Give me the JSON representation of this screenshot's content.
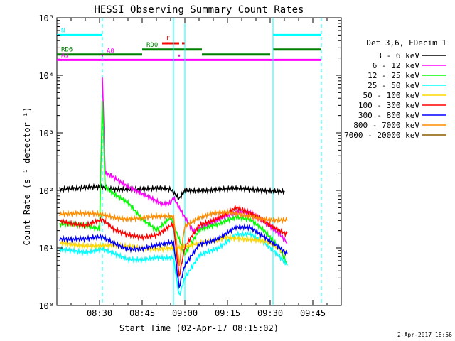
{
  "chart_data": {
    "type": "line",
    "title": "HESSI Observing Summary Count Rates",
    "xlabel": "Start Time (02-Apr-17 08:15:02)",
    "ylabel": "Count Rate (s⁻¹ detector⁻¹)",
    "y_scale": "log",
    "xlim": [
      "08:15",
      "09:55"
    ],
    "ylim": [
      1,
      100000
    ],
    "x_ticks": [
      "08:30",
      "08:45",
      "09:00",
      "09:15",
      "09:30",
      "09:45"
    ],
    "y_ticks": [
      "10⁰",
      "10¹",
      "10²",
      "10³",
      "10⁴",
      "10⁵"
    ],
    "grid": false,
    "legend_position": "right",
    "legend_title": "Det 3,6, FDecim 1",
    "footer_date": "2-Apr-2017 18:56",
    "series": [
      {
        "name": "3 - 6 keV",
        "color": "#000000",
        "x": [
          "08:16",
          "08:25",
          "08:31",
          "08:33",
          "08:40",
          "08:50",
          "08:55",
          "08:58",
          "09:00",
          "09:05",
          "09:15",
          "09:25",
          "09:30",
          "09:35"
        ],
        "y": [
          110,
          108,
          110,
          105,
          108,
          105,
          100,
          70,
          100,
          103,
          103,
          102,
          102,
          98
        ]
      },
      {
        "name": "6 - 12 keV",
        "color": "#ff00ff",
        "x": [
          "08:31",
          "08:32",
          "08:34",
          "08:37",
          "08:40",
          "08:44",
          "08:48",
          "08:52",
          "08:55",
          "08:56",
          "09:03",
          "09:10",
          "09:18",
          "09:23",
          "09:28",
          "09:33",
          "09:36"
        ],
        "y": [
          10000,
          200,
          190,
          150,
          120,
          90,
          70,
          55,
          60,
          75,
          20,
          28,
          40,
          42,
          30,
          18,
          12
        ]
      },
      {
        "name": "12 - 25 keV",
        "color": "#00ff00",
        "x": [
          "08:16",
          "08:25",
          "08:30",
          "08:31",
          "08:32",
          "08:35",
          "08:40",
          "08:45",
          "08:50",
          "08:55",
          "08:58",
          "09:00",
          "09:05",
          "09:12",
          "09:18",
          "09:23",
          "09:28",
          "09:33",
          "09:36"
        ],
        "y": [
          25,
          24,
          22,
          4000,
          120,
          90,
          60,
          30,
          20,
          35,
          15,
          8,
          20,
          25,
          35,
          33,
          20,
          10,
          5
        ]
      },
      {
        "name": "25 - 50 keV",
        "color": "#00ffff",
        "x": [
          "08:16",
          "08:25",
          "08:31",
          "08:35",
          "08:40",
          "08:45",
          "08:50",
          "08:56",
          "08:58",
          "09:00",
          "09:05",
          "09:12",
          "09:18",
          "09:23",
          "09:28",
          "09:33",
          "09:36"
        ],
        "y": [
          9,
          8.5,
          10,
          8,
          6,
          6,
          7,
          7,
          1.5,
          3,
          7,
          10,
          18,
          18,
          12,
          7,
          5
        ]
      },
      {
        "name": "50 - 100 keV",
        "color": "#ffd700",
        "x": [
          "08:16",
          "08:30",
          "08:45",
          "09:00",
          "09:15",
          "09:30",
          "09:36"
        ],
        "y": [
          12,
          11,
          10,
          10,
          16,
          12,
          8
        ]
      },
      {
        "name": "100 - 300 keV",
        "color": "#ff0000",
        "x": [
          "08:16",
          "08:25",
          "08:31",
          "08:35",
          "08:40",
          "08:45",
          "08:50",
          "08:56",
          "08:58",
          "09:00",
          "09:05",
          "09:12",
          "09:18",
          "09:20",
          "09:25",
          "09:30",
          "09:36"
        ],
        "y": [
          30,
          25,
          30,
          20,
          17,
          16,
          17,
          25,
          3,
          10,
          25,
          35,
          50,
          45,
          35,
          25,
          18
        ]
      },
      {
        "name": "300 - 800 keV",
        "color": "#0000ff",
        "x": [
          "08:16",
          "08:25",
          "08:31",
          "08:35",
          "08:40",
          "08:45",
          "08:50",
          "08:56",
          "08:58",
          "09:00",
          "09:05",
          "09:12",
          "09:18",
          "09:23",
          "09:28",
          "09:33",
          "09:36"
        ],
        "y": [
          15,
          14,
          15,
          12,
          10,
          10,
          11,
          12,
          2,
          5,
          12,
          15,
          22,
          22,
          16,
          11,
          8
        ]
      },
      {
        "name": "800 - 7000 keV",
        "color": "#ff8c00",
        "x": [
          "08:16",
          "08:25",
          "08:31",
          "08:35",
          "08:40",
          "08:45",
          "08:50",
          "08:56",
          "08:58",
          "09:00",
          "09:05",
          "09:10",
          "09:15",
          "09:18",
          "09:25",
          "09:30",
          "09:36"
        ],
        "y": [
          40,
          38,
          38,
          35,
          33,
          33,
          34,
          35,
          5,
          25,
          35,
          40,
          40,
          38,
          35,
          32,
          30
        ]
      },
      {
        "name": "7000 - 20000 keV",
        "color": "#8b5a00",
        "x": [],
        "y": []
      }
    ],
    "vertical_markers": [
      {
        "time": "08:31",
        "color": "#00ffff",
        "style": "dashed"
      },
      {
        "time": "08:56",
        "color": "#00ffff",
        "style": "solid"
      },
      {
        "time": "09:00",
        "color": "#00ffff",
        "style": "solid"
      },
      {
        "time": "09:31",
        "color": "#00ffff",
        "style": "solid"
      },
      {
        "time": "09:48",
        "color": "#00ffff",
        "style": "dashed"
      }
    ],
    "flag_bars": [
      {
        "label": "N",
        "color": "#00ffff",
        "level": 50000,
        "segments": [
          [
            "08:15",
            "08:31"
          ],
          [
            "09:31",
            "09:48"
          ]
        ]
      },
      {
        "label": "F",
        "color": "#ff0000",
        "level": 36000,
        "segments": [
          [
            "08:52",
            "08:58"
          ],
          [
            "08:59",
            "09:00"
          ]
        ]
      },
      {
        "label": "RD0",
        "color": "#008000",
        "level": 28000,
        "segments": [
          [
            "08:45",
            "09:06"
          ],
          [
            "09:31",
            "09:48"
          ]
        ]
      },
      {
        "label": "RD6",
        "color": "#008000",
        "level": 23000,
        "segments": [
          [
            "08:15",
            "08:45"
          ],
          [
            "09:06",
            "09:30"
          ]
        ]
      },
      {
        "label": "A0",
        "color": "#ff00ff",
        "level": 22000,
        "segments": [
          [
            "08:31",
            "08:31"
          ],
          [
            "08:58",
            "08:58"
          ]
        ]
      },
      {
        "label": "A1",
        "color": "#ff00ff",
        "level": 18500,
        "segments": [
          [
            "08:15",
            "09:48"
          ]
        ]
      }
    ]
  }
}
